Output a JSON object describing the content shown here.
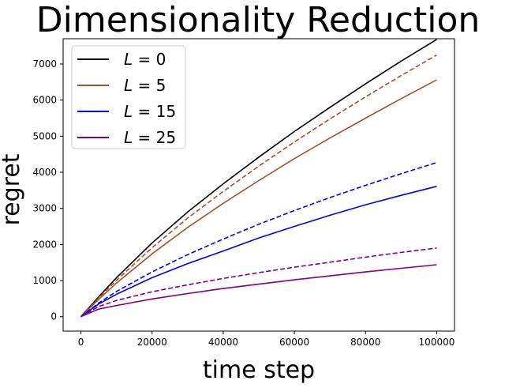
{
  "chart_data": {
    "type": "line",
    "title": "Dimensionality Reduction",
    "xlabel": "time step",
    "ylabel": "regret",
    "xlim": [
      -5000,
      105000
    ],
    "ylim": [
      -400,
      7700
    ],
    "xticks": [
      0,
      20000,
      40000,
      60000,
      80000,
      100000
    ],
    "xtick_labels": [
      "0",
      "20000",
      "40000",
      "60000",
      "80000",
      "100000"
    ],
    "yticks": [
      0,
      1000,
      2000,
      3000,
      4000,
      5000,
      6000,
      7000
    ],
    "ytick_labels": [
      "0",
      "1000",
      "2000",
      "3000",
      "4000",
      "5000",
      "6000",
      "7000"
    ],
    "grid": false,
    "legend_position": "top-left",
    "series": [
      {
        "name": "L = 0",
        "legend_var": "L",
        "legend_rest": " = 0",
        "color": "#000000",
        "style": "solid",
        "legend": true,
        "x": [
          0,
          5000,
          10000,
          20000,
          30000,
          40000,
          50000,
          60000,
          70000,
          80000,
          90000,
          100000
        ],
        "y": [
          0,
          550,
          1080,
          2040,
          2900,
          3680,
          4420,
          5130,
          5800,
          6450,
          7080,
          7680
        ]
      },
      {
        "name": "L = 5",
        "legend_var": "L",
        "legend_rest": " = 5",
        "color": "#a0522d",
        "style": "solid",
        "legend": true,
        "x": [
          0,
          5000,
          10000,
          20000,
          30000,
          40000,
          50000,
          60000,
          70000,
          80000,
          90000,
          100000
        ],
        "y": [
          0,
          480,
          930,
          1740,
          2470,
          3140,
          3770,
          4380,
          4950,
          5500,
          6040,
          6560
        ]
      },
      {
        "name": "L = 5 (dashed)",
        "color": "#a0522d",
        "style": "dashed",
        "legend": false,
        "x": [
          0,
          5000,
          10000,
          20000,
          30000,
          40000,
          50000,
          60000,
          70000,
          80000,
          90000,
          100000
        ],
        "y": [
          0,
          520,
          1010,
          1910,
          2730,
          3470,
          4170,
          4840,
          5480,
          6090,
          6680,
          7250
        ]
      },
      {
        "name": "L = 15",
        "legend_var": "L",
        "legend_rest": " = 15",
        "color": "#0000ee",
        "style": "solid",
        "legend": true,
        "x": [
          0,
          5000,
          10000,
          20000,
          30000,
          40000,
          50000,
          60000,
          70000,
          80000,
          90000,
          100000
        ],
        "y": [
          0,
          350,
          620,
          1080,
          1470,
          1820,
          2180,
          2500,
          2810,
          3100,
          3360,
          3610
        ]
      },
      {
        "name": "L = 15 (dashed)",
        "color": "#0000ee",
        "style": "dashed",
        "legend": false,
        "x": [
          0,
          5000,
          10000,
          20000,
          30000,
          40000,
          50000,
          60000,
          70000,
          80000,
          90000,
          100000
        ],
        "y": [
          0,
          380,
          700,
          1240,
          1720,
          2150,
          2560,
          2940,
          3300,
          3640,
          3960,
          4270
        ]
      },
      {
        "name": "L = 25",
        "legend_var": "L",
        "legend_rest": " = 25",
        "color": "#800080",
        "style": "solid",
        "legend": true,
        "x": [
          0,
          5000,
          10000,
          20000,
          30000,
          40000,
          50000,
          60000,
          70000,
          80000,
          90000,
          100000
        ],
        "y": [
          0,
          210,
          310,
          490,
          640,
          780,
          900,
          1020,
          1130,
          1240,
          1340,
          1440
        ]
      },
      {
        "name": "L = 25 (dashed)",
        "color": "#800080",
        "style": "dashed",
        "legend": false,
        "x": [
          0,
          5000,
          10000,
          20000,
          30000,
          40000,
          50000,
          60000,
          70000,
          80000,
          90000,
          100000
        ],
        "y": [
          0,
          280,
          450,
          690,
          880,
          1060,
          1220,
          1370,
          1510,
          1650,
          1780,
          1900
        ]
      }
    ]
  }
}
